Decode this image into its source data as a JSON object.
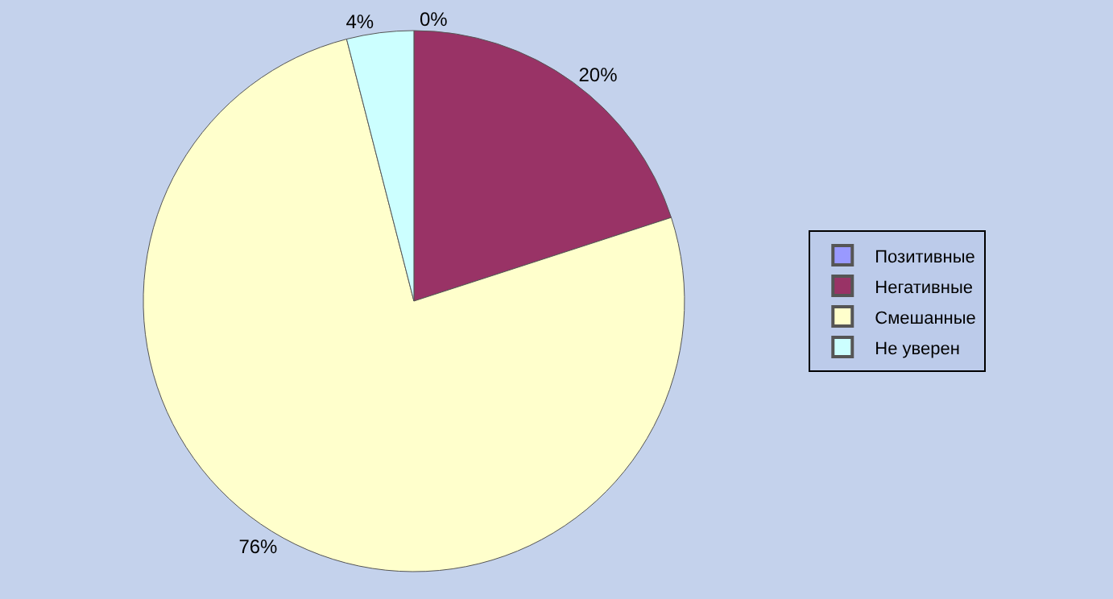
{
  "chart_data": {
    "type": "pie",
    "categories": [
      "Позитивные",
      "Негативные",
      "Смешанные",
      "Не уверен"
    ],
    "values": [
      0,
      20,
      76,
      4
    ],
    "value_labels": [
      "0%",
      "20%",
      "76%",
      "4%"
    ],
    "colors": [
      "#9999ff",
      "#993366",
      "#ffffcc",
      "#ccffff"
    ],
    "legend": "right"
  }
}
